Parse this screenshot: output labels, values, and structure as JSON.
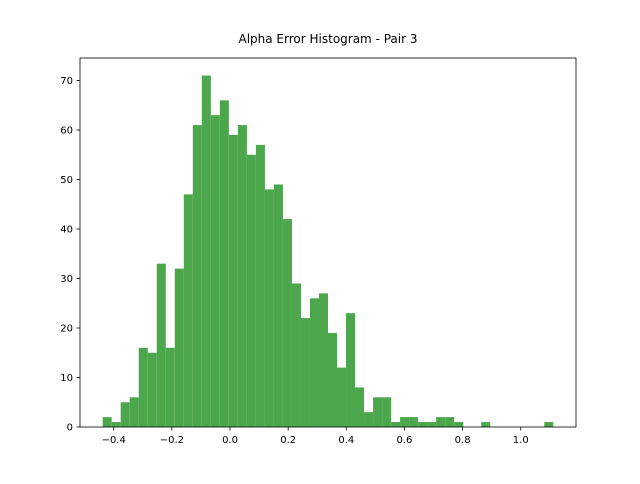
{
  "chart_data": {
    "type": "histogram",
    "title": "Alpha Error Histogram - Pair 3",
    "bins": [
      -0.438,
      -0.407,
      -0.376,
      -0.345,
      -0.314,
      -0.283,
      -0.252,
      -0.221,
      -0.19,
      -0.159,
      -0.128,
      -0.097,
      -0.066,
      -0.035,
      -0.004,
      0.027,
      0.058,
      0.089,
      0.12,
      0.151,
      0.182,
      0.213,
      0.244,
      0.275,
      0.306,
      0.337,
      0.368,
      0.399,
      0.43,
      0.461,
      0.492,
      0.523,
      0.554,
      0.585,
      0.616,
      0.647,
      0.678,
      0.709,
      0.74,
      0.771,
      0.802,
      0.833,
      0.864,
      0.895,
      0.926,
      0.957,
      0.988,
      1.019,
      1.05,
      1.081,
      1.112
    ],
    "values": [
      2,
      1,
      5,
      6,
      16,
      15,
      33,
      16,
      32,
      47,
      61,
      71,
      63,
      66,
      59,
      61,
      55,
      57,
      48,
      49,
      42,
      29,
      22,
      26,
      27,
      19,
      12,
      23,
      8,
      3,
      6,
      6,
      1,
      2,
      2,
      1,
      1,
      2,
      2,
      1,
      0,
      0,
      1,
      0,
      0,
      0,
      0,
      0,
      0,
      1
    ],
    "color": "#4ca64c",
    "xlim": [
      -0.516,
      1.19
    ],
    "xticks": [
      {
        "value": -0.4,
        "label": "−0.4"
      },
      {
        "value": -0.2,
        "label": "−0.2"
      },
      {
        "value": 0,
        "label": "0.0"
      },
      0.2,
      0.4,
      0.6,
      0.8,
      {
        "value": 1,
        "label": "1.0"
      }
    ],
    "ylim": [
      0,
      74.55
    ],
    "yticks": [
      0,
      10,
      20,
      30,
      40,
      50,
      60,
      70
    ],
    "grid": false
  }
}
